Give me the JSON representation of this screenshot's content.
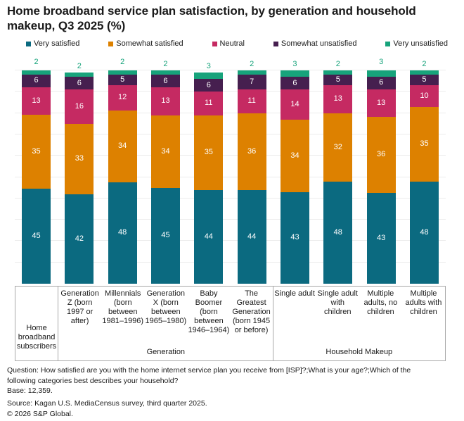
{
  "title": "Home broadband service plan satisfaction, by generation and household makeup, Q3 2025 (%)",
  "colors": {
    "very_satisfied": "#0b6a80",
    "somewhat_satisfied": "#dd8100",
    "neutral": "#c52a62",
    "somewhat_unsatisfied": "#461f4f",
    "very_unsatisfied": "#17a37b",
    "gridline": "#ececec",
    "axis_border": "#a8a8a8"
  },
  "chart_data": {
    "type": "bar",
    "stacked": true,
    "unit": "%",
    "ylim": [
      0,
      100
    ],
    "gridline_step": 10,
    "legend_position": "top",
    "categories": [
      "Home broadband subscribers",
      "Generation Z (born 1997 or after)",
      "Millennials (born between 1981–1996)",
      "Generation X (born between 1965–1980)",
      "Baby Boomer (born between 1946–1964)",
      "The Greatest Generation (born 1945 or before)",
      "Single adult",
      "Single adult with children",
      "Multiple adults, no children",
      "Multiple adults with children"
    ],
    "series": [
      {
        "name": "Very satisfied",
        "color": "#0b6a80",
        "values": [
          45,
          42,
          48,
          45,
          44,
          44,
          43,
          48,
          43,
          48
        ]
      },
      {
        "name": "Somewhat satisfied",
        "color": "#dd8100",
        "values": [
          35,
          33,
          34,
          34,
          35,
          36,
          34,
          32,
          36,
          35
        ]
      },
      {
        "name": "Neutral",
        "color": "#c52a62",
        "values": [
          13,
          16,
          12,
          13,
          11,
          11,
          14,
          13,
          13,
          10
        ]
      },
      {
        "name": "Somewhat unsatisfied",
        "color": "#461f4f",
        "values": [
          6,
          6,
          5,
          6,
          6,
          7,
          6,
          5,
          6,
          5
        ]
      },
      {
        "name": "Very unsatisfied",
        "color": "#17a37b",
        "values": [
          2,
          2,
          2,
          2,
          3,
          2,
          3,
          2,
          3,
          2
        ]
      }
    ],
    "groups": [
      {
        "label": "Generation",
        "start": 1,
        "end": 5
      },
      {
        "label": "Household Makeup",
        "start": 6,
        "end": 9
      }
    ],
    "separators_after": [
      0,
      5
    ]
  },
  "footer": {
    "question": "Question: How satisfied are you with the home internet service plan you receive from [ISP]?;What is your age?;Which of the following categories best describes your household?",
    "base": "Base: 12,359.",
    "source": "Source: Kagan U.S. MediaCensus survey, third quarter 2025.",
    "copyright": "© 2026 S&P Global."
  }
}
